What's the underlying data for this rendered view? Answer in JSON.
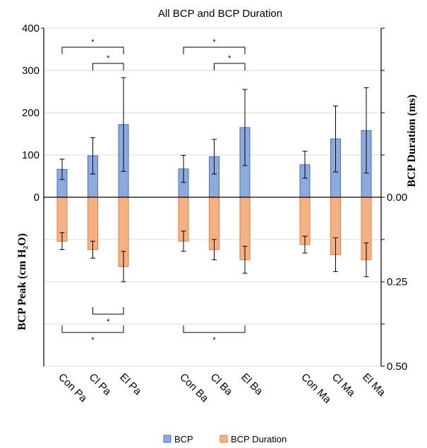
{
  "chart_data": {
    "type": "bar",
    "title": "All BCP and BCP Duration",
    "categories": [
      "Con Pa",
      "Cl Pa",
      "El Pa",
      "Con Ba",
      "Cl Ba",
      "El Ba",
      "Con Ma",
      "Cl Ma",
      "El Ma"
    ],
    "groups": [
      [
        0,
        1,
        2
      ],
      [
        3,
        4,
        5
      ],
      [
        6,
        7,
        8
      ]
    ],
    "series": [
      {
        "name": "BCP",
        "axis": "left",
        "color": "#8EA9DB",
        "edge": "#4472C4",
        "values": [
          66,
          98,
          172,
          67,
          96,
          165,
          77,
          138,
          158
        ],
        "err": [
          24,
          43,
          111,
          32,
          41,
          90,
          32,
          78,
          101
        ]
      },
      {
        "name": "BCP Duration",
        "axis": "right",
        "color": "#F4B183",
        "edge": "#ED7D31",
        "values": [
          0.13,
          0.155,
          0.205,
          0.13,
          0.155,
          0.185,
          0.14,
          0.17,
          0.185
        ],
        "err": [
          0.025,
          0.025,
          0.045,
          0.03,
          0.03,
          0.04,
          0.025,
          0.05,
          0.05
        ]
      }
    ],
    "ylabel_left": "BCP Peak (cm H₂O)",
    "ylabel_right": "BCP Duration (ms)",
    "yticks_left": [
      "400",
      "300",
      "200",
      "100",
      "0"
    ],
    "yticks_left_values": [
      400,
      300,
      200,
      100,
      0
    ],
    "ylim_left": [
      -400,
      400
    ],
    "yticks_right": [
      "0.00",
      "0.25",
      "0.50"
    ],
    "yticks_right_values": [
      0,
      0.25,
      0.5
    ],
    "ylim_right": [
      0.5,
      -0.5
    ],
    "grid": true,
    "legend_position": "bottom",
    "significance": {
      "label": "*",
      "brackets": [
        {
          "from": 0,
          "to": 2,
          "side": "top"
        },
        {
          "from": 1,
          "to": 2,
          "side": "top"
        },
        {
          "from": 3,
          "to": 5,
          "side": "top"
        },
        {
          "from": 4,
          "to": 5,
          "side": "top"
        },
        {
          "from": 1,
          "to": 2,
          "side": "bottom"
        },
        {
          "from": 0,
          "to": 2,
          "side": "bottom"
        },
        {
          "from": 3,
          "to": 5,
          "side": "bottom"
        }
      ]
    }
  }
}
